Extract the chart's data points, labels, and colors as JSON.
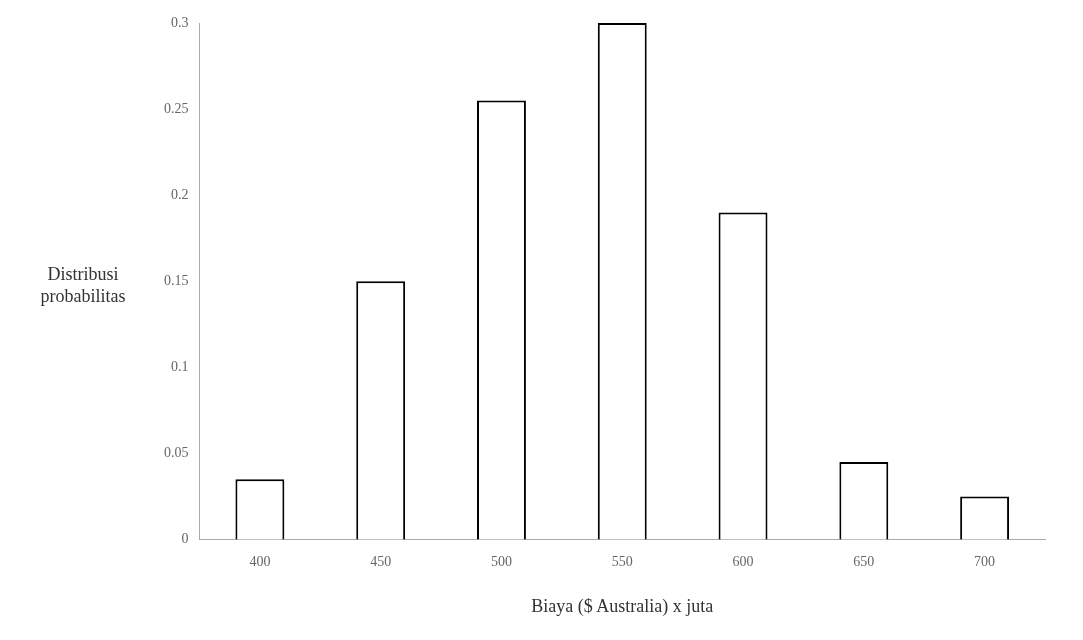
{
  "chart_data": {
    "type": "bar",
    "xlabel": "Biaya ($ Australia) x juta",
    "ylabel": "Distribusi probabilitas",
    "categories": [
      "400",
      "450",
      "500",
      "550",
      "600",
      "650",
      "700"
    ],
    "values": [
      0.035,
      0.15,
      0.255,
      0.3,
      0.19,
      0.045,
      0.025
    ],
    "color": "#ffffff",
    "ylim": [
      0,
      0.3
    ],
    "yticks": [
      0,
      0.05,
      0.1,
      0.15,
      0.2,
      0.25,
      0.3
    ],
    "grid": false,
    "legend": false
  }
}
